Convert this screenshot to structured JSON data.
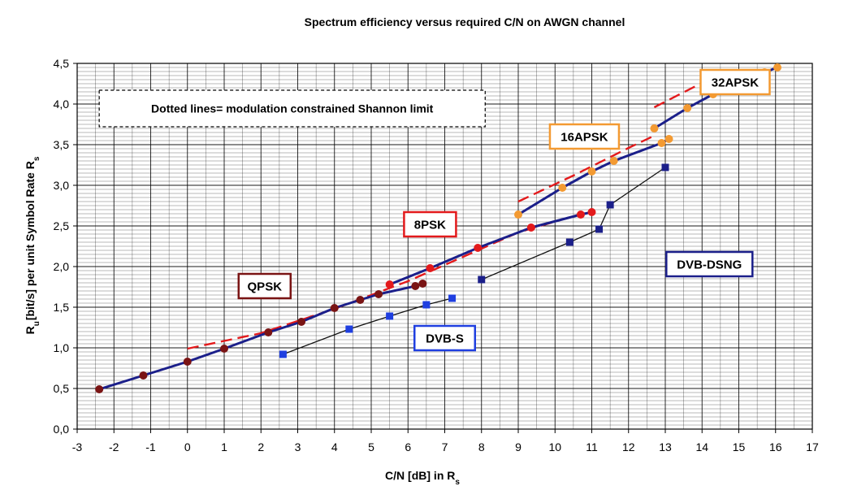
{
  "chart_data": {
    "type": "line",
    "title": "Spectrum efficiency versus required C/N  on AWGN channel",
    "xlabel": "C/N [dB] in R",
    "xlabel_sub": "s",
    "ylabel_main": "R",
    "ylabel_sub1": "u",
    "ylabel_mid": "[bit/s] per unit Symbol Rate R",
    "ylabel_sub2": "s",
    "xlim": [
      -3,
      17
    ],
    "ylim": [
      0,
      4.5
    ],
    "x_ticks": [
      "-3",
      "-2",
      "-1",
      "0",
      "1",
      "2",
      "3",
      "4",
      "5",
      "6",
      "7",
      "8",
      "9",
      "10",
      "11",
      "12",
      "13",
      "14",
      "15",
      "16",
      "17"
    ],
    "y_ticks": [
      "0,0",
      "0,5",
      "1,0",
      "1,5",
      "2,0",
      "2,5",
      "3,0",
      "3,5",
      "4,0",
      "4,5"
    ],
    "grid": true,
    "note": "Dotted lines= modulation constrained Shannon limit",
    "series": [
      {
        "name": "QPSK",
        "color": "#1b1f8a",
        "marker_color": "#7a1414",
        "marker": "circle",
        "line_width": 3,
        "points": [
          [
            -2.4,
            0.49
          ],
          [
            -1.2,
            0.66
          ],
          [
            0,
            0.83
          ],
          [
            1.0,
            0.99
          ],
          [
            2.2,
            1.19
          ],
          [
            3.1,
            1.32
          ],
          [
            4.0,
            1.49
          ],
          [
            4.7,
            1.59
          ],
          [
            5.2,
            1.66
          ],
          [
            6.2,
            1.76
          ],
          [
            6.4,
            1.79
          ]
        ]
      },
      {
        "name": "8PSK",
        "color": "#1b1f8a",
        "marker_color": "#e31a1c",
        "marker": "circle",
        "line_width": 3,
        "points": [
          [
            5.5,
            1.78
          ],
          [
            6.6,
            1.98
          ],
          [
            7.9,
            2.23
          ],
          [
            9.35,
            2.48
          ],
          [
            10.7,
            2.64
          ],
          [
            11.0,
            2.67
          ]
        ]
      },
      {
        "name": "16APSK",
        "color": "#1b1f8a",
        "marker_color": "#f39a32",
        "marker": "circle",
        "line_width": 3,
        "points": [
          [
            9.0,
            2.64
          ],
          [
            10.2,
            2.97
          ],
          [
            11.0,
            3.17
          ],
          [
            11.6,
            3.3
          ],
          [
            12.9,
            3.52
          ],
          [
            13.1,
            3.57
          ]
        ]
      },
      {
        "name": "32APSK",
        "color": "#1b1f8a",
        "marker_color": "#f39a32",
        "marker": "circle",
        "line_width": 3,
        "points": [
          [
            12.7,
            3.7
          ],
          [
            13.6,
            3.95
          ],
          [
            14.3,
            4.12
          ],
          [
            15.7,
            4.39
          ],
          [
            16.05,
            4.45
          ]
        ]
      },
      {
        "name": "DVB-S",
        "color": "#111111",
        "marker_color": "#1f3fe0",
        "marker": "square",
        "line_width": 1.3,
        "points": [
          [
            2.6,
            0.92
          ],
          [
            4.4,
            1.23
          ],
          [
            5.5,
            1.39
          ],
          [
            6.5,
            1.53
          ],
          [
            7.2,
            1.61
          ]
        ]
      },
      {
        "name": "DVB-DSNG",
        "color": "#111111",
        "marker_color": "#1b1f8a",
        "marker": "square",
        "line_width": 1.3,
        "points": [
          [
            8.0,
            1.84
          ],
          [
            10.4,
            2.3
          ],
          [
            11.2,
            2.46
          ],
          [
            11.5,
            2.76
          ],
          [
            13.0,
            3.22
          ]
        ]
      }
    ],
    "shannon_limits": [
      {
        "color": "#e31a1c",
        "dash": "14,7",
        "points": [
          [
            0,
            0.99
          ],
          [
            2.0,
            1.18
          ],
          [
            4.0,
            1.48
          ],
          [
            6.0,
            1.82
          ],
          [
            7.5,
            2.12
          ],
          [
            9.0,
            2.42
          ],
          [
            10.5,
            2.62
          ],
          [
            11.0,
            2.68
          ]
        ]
      },
      {
        "color": "#e31a1c",
        "dash": "14,7",
        "points": [
          [
            9.0,
            2.8
          ],
          [
            10.5,
            3.12
          ],
          [
            12.0,
            3.46
          ],
          [
            12.7,
            3.61
          ]
        ]
      },
      {
        "color": "#e31a1c",
        "dash": "14,7",
        "points": [
          [
            12.7,
            3.96
          ],
          [
            14.0,
            4.26
          ],
          [
            15.0,
            4.38
          ]
        ]
      }
    ],
    "labels": [
      {
        "text": "QPSK",
        "border": "#7a1414",
        "x": 2.1,
        "y": 1.76
      },
      {
        "text": "8PSK",
        "border": "#e31a1c",
        "x": 6.6,
        "y": 2.52
      },
      {
        "text": "16APSK",
        "border": "#f39a32",
        "x": 10.8,
        "y": 3.6
      },
      {
        "text": "32APSK",
        "border": "#f39a32",
        "x": 14.9,
        "y": 4.27
      },
      {
        "text": "DVB-S",
        "border": "#1f3fe0",
        "x": 7.0,
        "y": 1.12
      },
      {
        "text": "DVB-DSNG",
        "border": "#1b1f8a",
        "x": 14.2,
        "y": 2.03
      }
    ]
  }
}
